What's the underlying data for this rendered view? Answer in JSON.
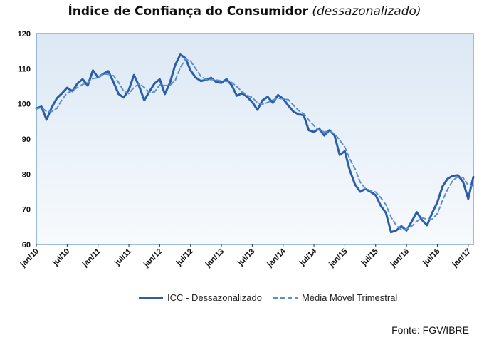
{
  "title_main": "Índice de Confiança do Consumidor",
  "title_sub": "(dessazonalizado)",
  "source": "Fonte: FGV/IBRE",
  "colors": {
    "series_icc": "#2a5ea8",
    "series_mm": "#5b8fcf",
    "plot_border": "#7ea6cf",
    "plot_bg_top": "#dce8f4",
    "plot_bg_bottom": "#f7fafd"
  },
  "chart_data": {
    "type": "line",
    "title": "Índice de Confiança do Consumidor (dessazonalizado)",
    "ylim": [
      60,
      120
    ],
    "yticks": [
      60,
      70,
      80,
      90,
      100,
      110,
      120
    ],
    "x_labels": [
      "jan/10",
      "jul/10",
      "jan/11",
      "jul/11",
      "jan/12",
      "jul/12",
      "jan/13",
      "jul/13",
      "jan/14",
      "jul/14",
      "jan/15",
      "jul/15",
      "jan/16",
      "jul/16",
      "jan/17"
    ],
    "grid": false,
    "legend": "bottom",
    "series": [
      {
        "name": "ICC - Dessazonalizado",
        "style": "solid",
        "values": [
          98.7,
          99.2,
          95.5,
          99.0,
          101.6,
          103.0,
          104.6,
          103.6,
          105.8,
          107.0,
          105.2,
          109.5,
          107.5,
          108.5,
          109.3,
          106.2,
          102.8,
          101.8,
          104.0,
          108.2,
          105.0,
          101.0,
          103.5,
          105.8,
          107.0,
          102.8,
          106.0,
          111.0,
          114.0,
          113.0,
          109.5,
          107.5,
          106.5,
          106.8,
          107.4,
          106.2,
          106.0,
          107.0,
          105.3,
          102.3,
          103.0,
          102.0,
          100.5,
          98.3,
          101.0,
          102.0,
          100.3,
          102.5,
          101.5,
          99.5,
          97.8,
          97.0,
          96.8,
          92.5,
          92.0,
          93.0,
          91.0,
          92.5,
          91.0,
          85.5,
          86.5,
          81.0,
          77.0,
          75.0,
          75.8,
          75.0,
          74.0,
          71.0,
          69.0,
          63.5,
          64.0,
          65.2,
          64.0,
          66.5,
          69.2,
          67.0,
          65.5,
          69.0,
          72.0,
          76.5,
          78.7,
          79.5,
          79.7,
          77.8,
          73.0,
          79.2
        ]
      },
      {
        "name": "Média Móvel Trimestral",
        "style": "dashed",
        "values": [
          98.5,
          99.0,
          97.8,
          97.8,
          98.7,
          101.2,
          103.1,
          103.7,
          104.7,
          105.5,
          106.0,
          107.2,
          107.4,
          108.5,
          108.4,
          108.0,
          106.1,
          103.6,
          102.9,
          104.7,
          105.7,
          104.7,
          103.2,
          103.4,
          105.4,
          105.2,
          105.3,
          106.6,
          110.3,
          112.7,
          112.2,
          110.0,
          107.8,
          106.9,
          106.9,
          106.8,
          106.5,
          106.4,
          106.1,
          104.9,
          103.5,
          102.4,
          101.8,
          100.3,
          99.9,
          100.4,
          101.1,
          101.6,
          101.4,
          101.2,
          99.6,
          98.1,
          97.2,
          95.4,
          93.8,
          92.5,
          92.0,
          92.2,
          91.5,
          89.7,
          87.7,
          84.3,
          81.5,
          77.7,
          75.9,
          75.3,
          74.9,
          73.3,
          71.3,
          67.8,
          65.5,
          64.2,
          64.4,
          65.2,
          66.6,
          67.6,
          67.2,
          67.2,
          68.8,
          72.5,
          75.7,
          78.2,
          79.3,
          79.0,
          76.8,
          76.7
        ]
      }
    ]
  }
}
